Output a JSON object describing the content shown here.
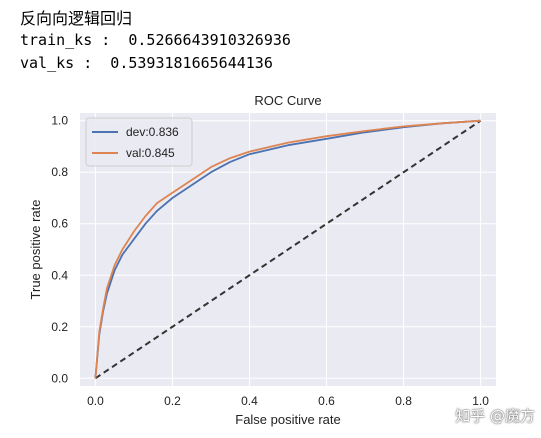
{
  "output": {
    "heading": "反向向逻辑回归",
    "train_ks": "train_ks :  0.5266643910326936",
    "val_ks": "val_ks :  0.5393181665644136"
  },
  "watermark": "知乎 @魔方",
  "colors": {
    "plot_bg": "#eaeaf2",
    "grid": "#ffffff",
    "dev": "#4c72b0",
    "val": "#dd8452",
    "diagonal": "#333333",
    "text": "#222222"
  },
  "chart_data": {
    "type": "line",
    "title": "ROC Curve",
    "xlabel": "False positive rate",
    "ylabel": "True positive rate",
    "xlim": [
      -0.04,
      1.04
    ],
    "ylim": [
      -0.03,
      1.03
    ],
    "xticks": [
      "0.0",
      "0.2",
      "0.4",
      "0.6",
      "0.8",
      "1.0"
    ],
    "yticks": [
      "0.0",
      "0.2",
      "0.4",
      "0.6",
      "0.8",
      "1.0"
    ],
    "grid": true,
    "legend_position": "top-left",
    "series": [
      {
        "name": "dev:0.836",
        "color": "#4c72b0",
        "x": [
          0,
          0.01,
          0.02,
          0.03,
          0.05,
          0.07,
          0.1,
          0.13,
          0.16,
          0.2,
          0.25,
          0.3,
          0.35,
          0.4,
          0.5,
          0.6,
          0.7,
          0.8,
          0.9,
          1.0
        ],
        "y": [
          0,
          0.17,
          0.26,
          0.33,
          0.42,
          0.48,
          0.54,
          0.6,
          0.65,
          0.7,
          0.75,
          0.8,
          0.84,
          0.87,
          0.905,
          0.93,
          0.955,
          0.975,
          0.99,
          1.0
        ]
      },
      {
        "name": "val:0.845",
        "color": "#dd8452",
        "x": [
          0,
          0.01,
          0.02,
          0.03,
          0.05,
          0.07,
          0.1,
          0.13,
          0.16,
          0.2,
          0.25,
          0.3,
          0.35,
          0.4,
          0.5,
          0.6,
          0.7,
          0.8,
          0.9,
          1.0
        ],
        "y": [
          0,
          0.18,
          0.27,
          0.35,
          0.44,
          0.5,
          0.57,
          0.63,
          0.68,
          0.72,
          0.77,
          0.82,
          0.855,
          0.88,
          0.915,
          0.94,
          0.96,
          0.978,
          0.99,
          1.0
        ]
      }
    ],
    "reference_line": {
      "style": "dashed",
      "x": [
        0,
        1
      ],
      "y": [
        0,
        1
      ]
    }
  }
}
